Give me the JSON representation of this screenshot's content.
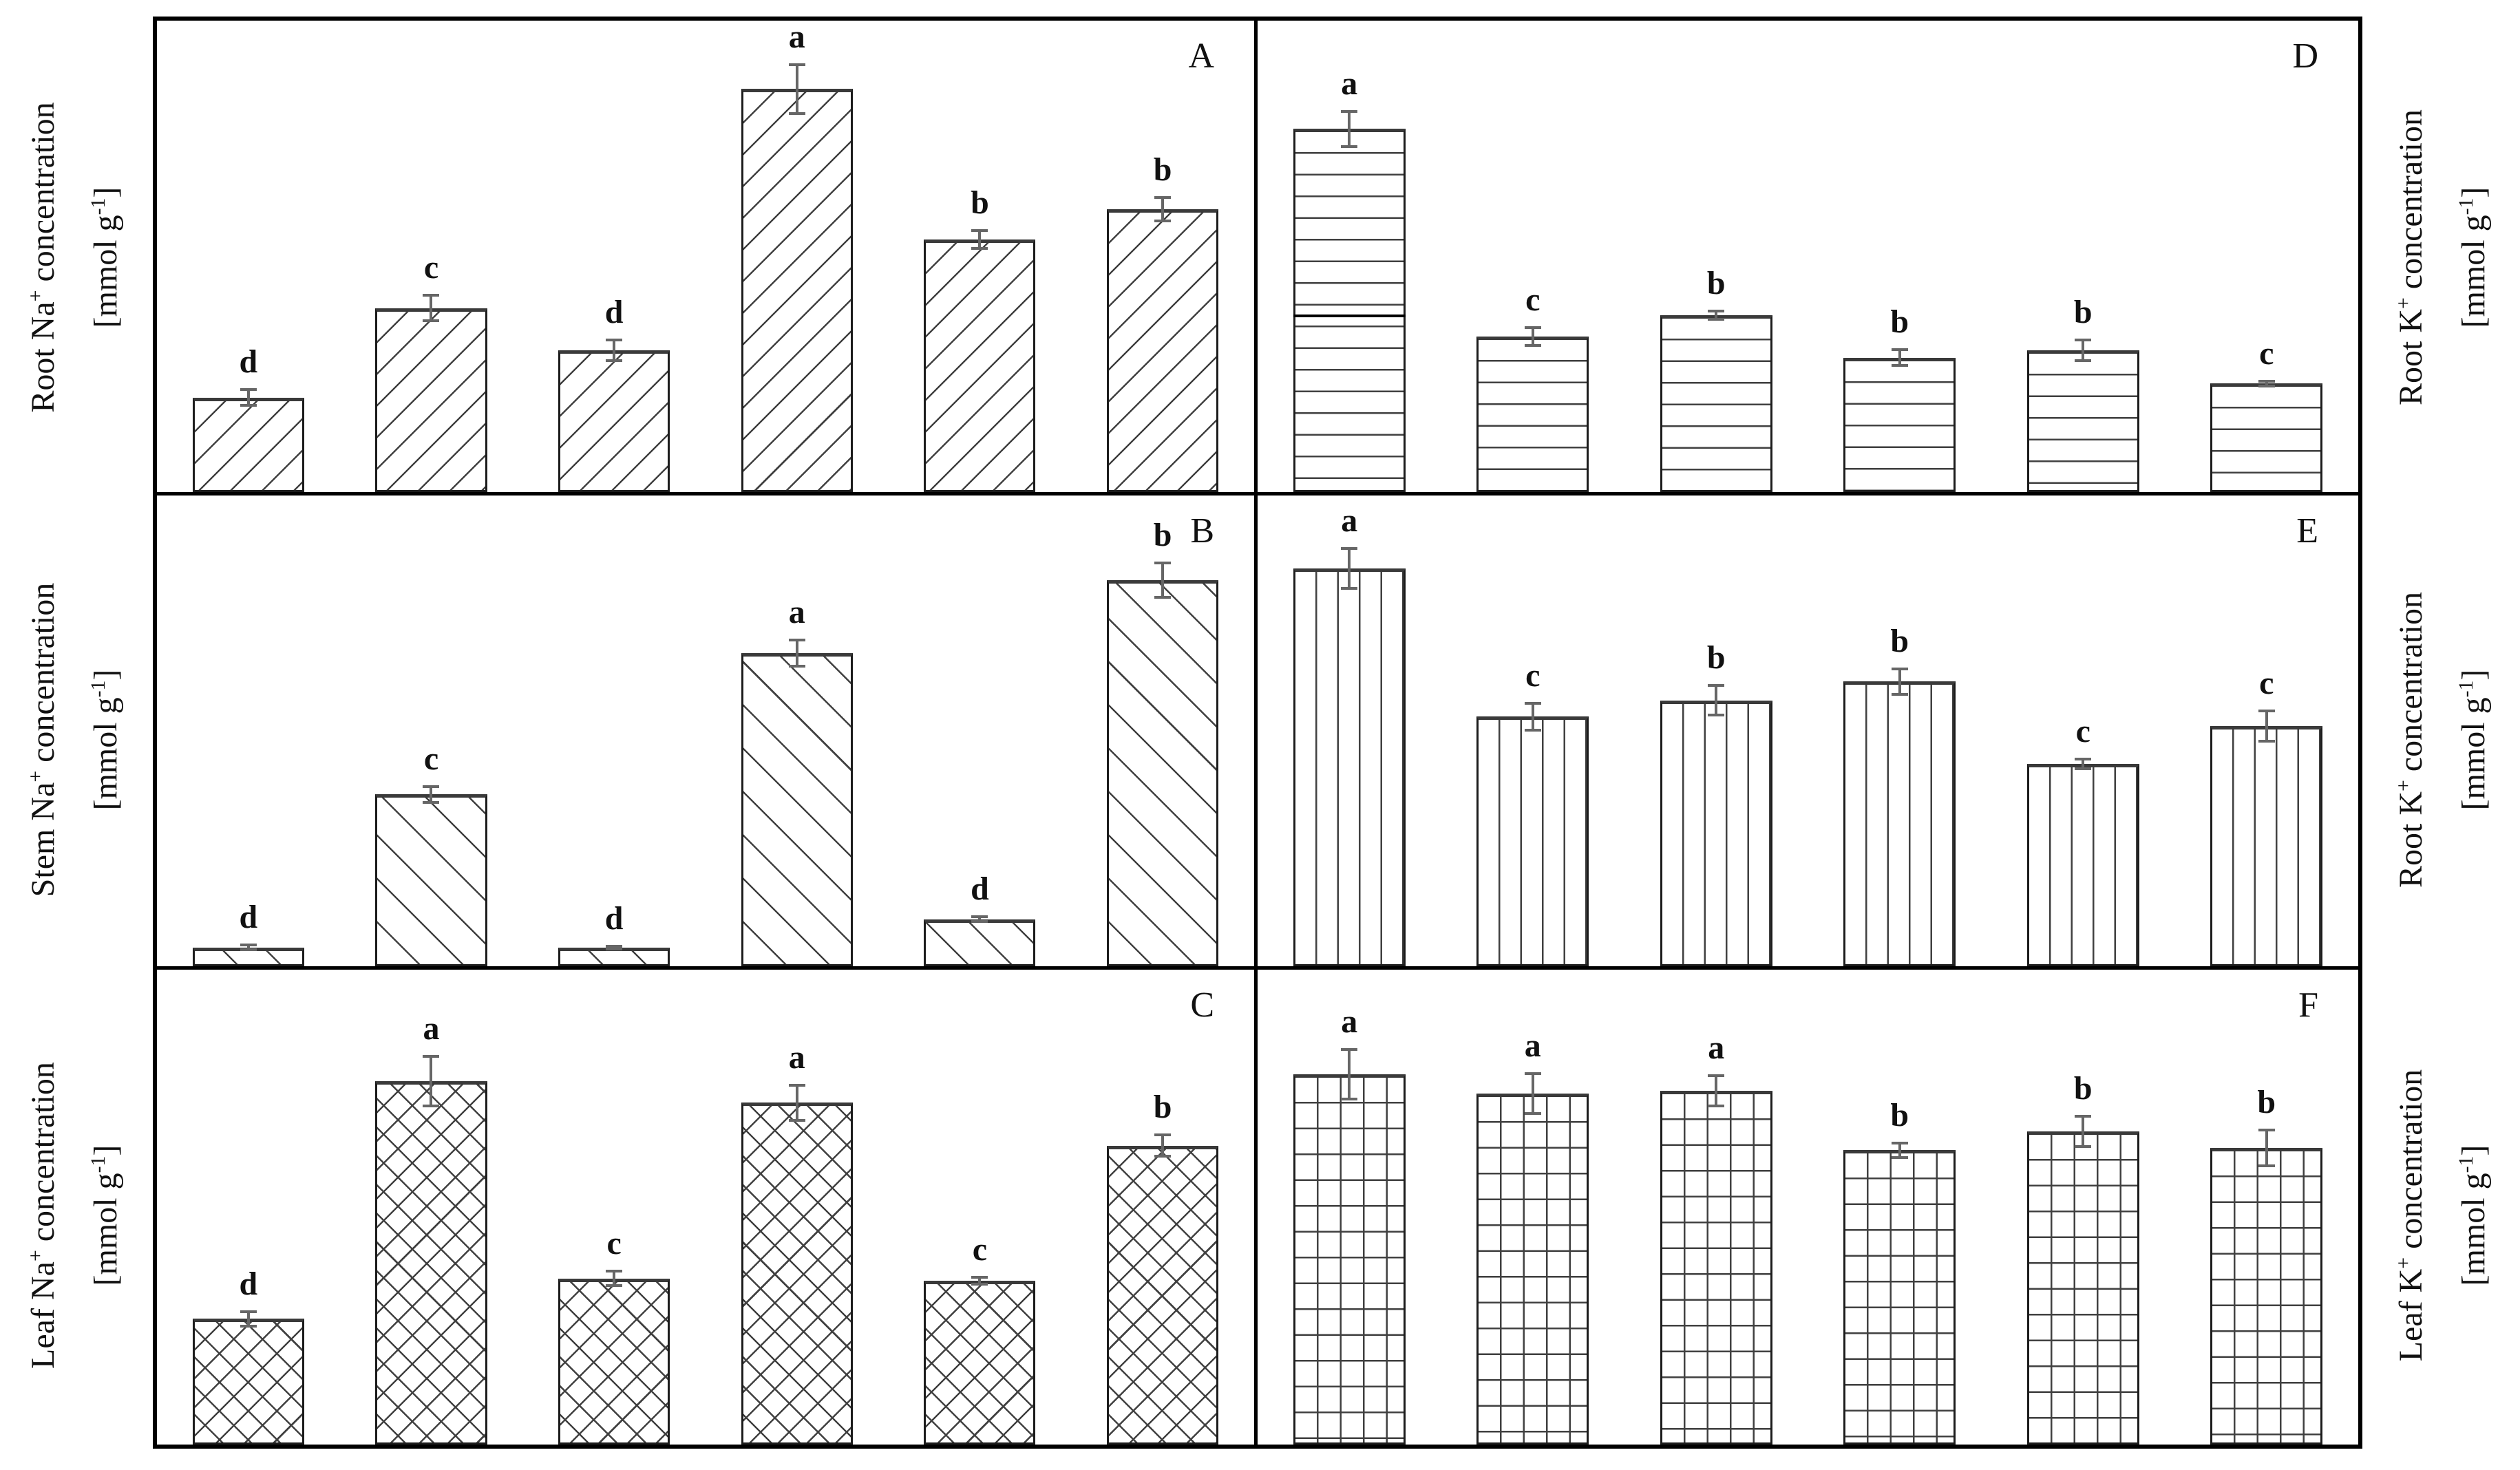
{
  "ylabels": {
    "left": [
      {
        "pre": "Root Na",
        "sup": "+",
        "post": " concentration",
        "unit_pre": "[mmol g",
        "unit_sup": "-1",
        "unit_post": "]"
      },
      {
        "pre": "Stem Na",
        "sup": "+",
        "post": " concentration",
        "unit_pre": "[mmol g",
        "unit_sup": "-1",
        "unit_post": "]"
      },
      {
        "pre": "Leaf Na",
        "sup": "+",
        "post": " concentration",
        "unit_pre": "[mmol g",
        "unit_sup": "-1",
        "unit_post": "]"
      }
    ],
    "right": [
      {
        "pre": "Root K",
        "sup": "+",
        "post": " concentration",
        "unit_pre": "[mmol g",
        "unit_sup": "-1",
        "unit_post": "]"
      },
      {
        "pre": "Root K",
        "sup": "+",
        "post": " concentration",
        "unit_pre": "[mmol g",
        "unit_sup": "-1",
        "unit_post": "]"
      },
      {
        "pre": "Leaf K",
        "sup": "+",
        "post": " concentration",
        "unit_pre": "[mmol g",
        "unit_sup": "-1",
        "unit_post": "]"
      }
    ]
  },
  "chart_data": [
    {
      "type": "bar",
      "panel_label": "A",
      "ylabel": "Root Na+ concentration [mmol g-1]",
      "hatch": "diagonal-up",
      "x": [
        1,
        2,
        3,
        4,
        5,
        6
      ],
      "values": [
        0.2,
        0.39,
        0.3,
        0.855,
        0.535,
        0.6
      ],
      "errors": [
        0.02,
        0.03,
        0.025,
        0.055,
        0.022,
        0.028
      ],
      "letters": [
        "d",
        "c",
        "d",
        "a",
        "b",
        "b"
      ],
      "ylim": [
        0,
        1
      ],
      "y_axis_ticks": "none",
      "xlabel": "",
      "value_units": "relative fraction of panel height (no numeric axis printed)"
    },
    {
      "type": "bar",
      "panel_label": "B",
      "ylabel": "Stem Na+ concentration [mmol g-1]",
      "hatch": "diagonal-down",
      "x": [
        1,
        2,
        3,
        4,
        5,
        6
      ],
      "values": [
        0.04,
        0.365,
        0.04,
        0.665,
        0.1,
        0.82
      ],
      "errors": [
        0.008,
        0.02,
        0.006,
        0.03,
        0.008,
        0.04
      ],
      "letters": [
        "d",
        "c",
        "d",
        "a",
        "d",
        "b"
      ],
      "ylim": [
        0,
        1
      ],
      "y_axis_ticks": "none",
      "xlabel": "",
      "value_units": "relative fraction of panel height (no numeric axis printed)"
    },
    {
      "type": "bar",
      "panel_label": "C",
      "ylabel": "Leaf Na+ concentration [mmol g-1]",
      "hatch": "cross",
      "x": [
        1,
        2,
        3,
        4,
        5,
        6
      ],
      "values": [
        0.265,
        0.765,
        0.35,
        0.72,
        0.345,
        0.63
      ],
      "errors": [
        0.018,
        0.055,
        0.018,
        0.04,
        0.01,
        0.025
      ],
      "letters": [
        "d",
        "a",
        "c",
        "a",
        "c",
        "b"
      ],
      "ylim": [
        0,
        1
      ],
      "y_axis_ticks": "none",
      "xlabel": "",
      "value_units": "relative fraction of panel height (no numeric axis printed)"
    },
    {
      "type": "bar",
      "panel_label": "D",
      "ylabel": "Root K+ concentration [mmol g-1]",
      "hatch": "horizontal",
      "x": [
        1,
        2,
        3,
        4,
        5,
        6
      ],
      "values": [
        0.77,
        0.33,
        0.375,
        0.285,
        0.3,
        0.23
      ],
      "errors": [
        0.04,
        0.022,
        0.012,
        0.02,
        0.025,
        0.008
      ],
      "letters": [
        "a",
        "c",
        "b",
        "b",
        "b",
        "c"
      ],
      "dark_lines": [
        {
          "bar_index": 0,
          "height_fraction": 0.37
        }
      ],
      "ylim": [
        0,
        1
      ],
      "y_axis_ticks": "none",
      "xlabel": "",
      "value_units": "relative fraction of panel height (no numeric axis printed)"
    },
    {
      "type": "bar",
      "panel_label": "E",
      "ylabel": "Root K+ concentration [mmol g-1]",
      "hatch": "vertical",
      "x": [
        1,
        2,
        3,
        4,
        5,
        6
      ],
      "values": [
        0.845,
        0.53,
        0.565,
        0.605,
        0.43,
        0.51
      ],
      "errors": [
        0.045,
        0.032,
        0.035,
        0.03,
        0.013,
        0.035
      ],
      "letters": [
        "a",
        "c",
        "b",
        "b",
        "c",
        "c"
      ],
      "ylim": [
        0,
        1
      ],
      "y_axis_ticks": "none",
      "xlabel": "",
      "value_units": "relative fraction of panel height (no numeric axis printed)"
    },
    {
      "type": "bar",
      "panel_label": "F",
      "ylabel": "Leaf K+ concentration [mmol g-1]",
      "hatch": "grid",
      "x": [
        1,
        2,
        3,
        4,
        5,
        6
      ],
      "values": [
        0.78,
        0.74,
        0.745,
        0.62,
        0.66,
        0.625
      ],
      "errors": [
        0.055,
        0.045,
        0.035,
        0.018,
        0.035,
        0.04
      ],
      "letters": [
        "a",
        "a",
        "a",
        "b",
        "b",
        "b"
      ],
      "ylim": [
        0,
        1
      ],
      "y_axis_ticks": "none",
      "xlabel": "",
      "value_units": "relative fraction of panel height (no numeric axis printed)"
    }
  ]
}
